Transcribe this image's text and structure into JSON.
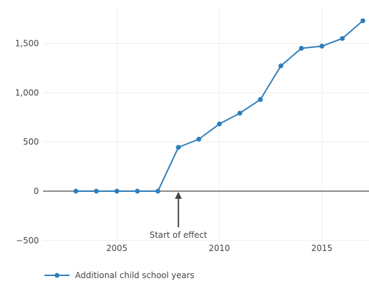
{
  "chart_data": {
    "type": "line",
    "x": [
      2003,
      2004,
      2005,
      2006,
      2007,
      2008,
      2009,
      2010,
      2011,
      2012,
      2013,
      2014,
      2015,
      2016,
      2017
    ],
    "series": [
      {
        "name": "Additional child school years",
        "values": [
          0,
          0,
          0,
          0,
          0,
          445,
          528,
          682,
          792,
          930,
          1272,
          1450,
          1472,
          1550,
          1730
        ]
      }
    ],
    "x_ticks": [
      2005,
      2010,
      2015
    ],
    "x_tick_labels": [
      "2005",
      "2010",
      "2015"
    ],
    "y_ticks": [
      -500,
      0,
      500,
      1000,
      1500
    ],
    "y_tick_labels": [
      "−500",
      "0",
      "500",
      "1,000",
      "1,500"
    ],
    "xlim": [
      2001.4,
      2017.3
    ],
    "ylim": [
      -530,
      1870
    ],
    "grid": true,
    "legend_position": "bottom-left",
    "annotation": {
      "text": "Start of effect",
      "x": 2008,
      "y": 0
    },
    "colors": {
      "series": "#2f7ebc",
      "zero_line": "#888888",
      "grid": "#eeeeee",
      "annotation": "#444444"
    }
  }
}
